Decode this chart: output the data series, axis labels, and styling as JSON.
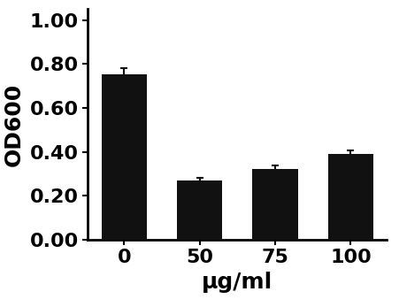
{
  "categories": [
    "0",
    "50",
    "75",
    "100"
  ],
  "values": [
    0.755,
    0.27,
    0.32,
    0.39
  ],
  "errors": [
    0.025,
    0.012,
    0.018,
    0.015
  ],
  "bar_color": "#111111",
  "bar_width": 0.6,
  "xlabel": "μg/ml",
  "ylabel": "OD600",
  "ylim": [
    0.0,
    1.05
  ],
  "yticks": [
    0.0,
    0.2,
    0.4,
    0.6,
    0.8,
    1.0
  ],
  "ytick_labels": [
    "0.00",
    "0.20",
    "0.40",
    "0.60",
    "0.80",
    "1.00"
  ],
  "xlabel_fontsize": 18,
  "ylabel_fontsize": 18,
  "tick_fontsize": 16,
  "tick_fontweight": "bold",
  "label_fontweight": "bold",
  "error_color": "#111111",
  "error_capsize": 3,
  "background_color": "#ffffff"
}
